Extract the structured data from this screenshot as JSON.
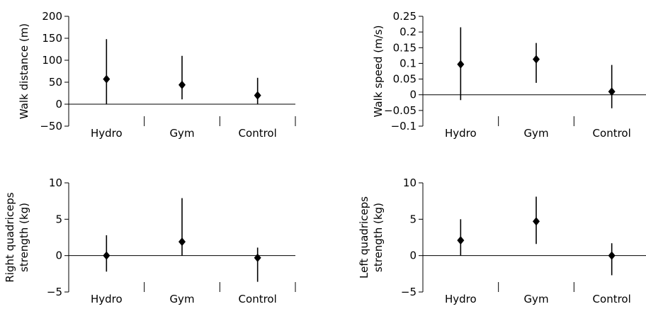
{
  "chart_data": [
    {
      "type": "scatter",
      "categories": [
        "Hydro",
        "Gym",
        "Control"
      ],
      "ylabel": [
        "Walk distance (m)"
      ],
      "ylim": [
        -50,
        200
      ],
      "yticks": [
        -50,
        0,
        50,
        100,
        150,
        200
      ],
      "ytick_labels": [
        "−50",
        "0",
        "50",
        "100",
        "150",
        "200"
      ],
      "series": [
        {
          "means": [
            57,
            44,
            20
          ],
          "lower": [
            0,
            11,
            0
          ],
          "upper": [
            148,
            110,
            60
          ]
        }
      ],
      "zero_line": true,
      "grid": false
    },
    {
      "type": "scatter",
      "categories": [
        "Hydro",
        "Gym",
        "Control"
      ],
      "ylabel": [
        "Walk speed (m/s)"
      ],
      "ylim": [
        -0.1,
        0.25
      ],
      "yticks": [
        -0.1,
        -0.05,
        0,
        0.05,
        0.1,
        0.15,
        0.2,
        0.25
      ],
      "ytick_labels": [
        "−0.1",
        "−0.05",
        "0",
        "0.05",
        "0.1",
        "0.15",
        "0.2",
        "0.25"
      ],
      "series": [
        {
          "means": [
            0.097,
            0.113,
            0.01
          ],
          "lower": [
            -0.017,
            0.038,
            -0.043
          ],
          "upper": [
            0.215,
            0.165,
            0.095
          ]
        }
      ],
      "zero_line": true,
      "grid": false
    },
    {
      "type": "scatter",
      "categories": [
        "Hydro",
        "Gym",
        "Control"
      ],
      "ylabel": [
        "Right quadriceps",
        "strength (kg)"
      ],
      "ylim": [
        -5,
        10
      ],
      "yticks": [
        -5,
        0,
        5,
        10
      ],
      "ytick_labels": [
        "−5",
        "0",
        "5",
        "10"
      ],
      "series": [
        {
          "means": [
            0,
            1.9,
            -0.3
          ],
          "lower": [
            -2.2,
            0,
            -3.6
          ],
          "upper": [
            2.8,
            7.9,
            1.1
          ]
        }
      ],
      "zero_line": true,
      "grid": false
    },
    {
      "type": "scatter",
      "categories": [
        "Hydro",
        "Gym",
        "Control"
      ],
      "ylabel": [
        "Left quadriceps",
        "strength (kg)"
      ],
      "ylim": [
        -5,
        10
      ],
      "yticks": [
        -5,
        0,
        5,
        10
      ],
      "ytick_labels": [
        "−5",
        "0",
        "5",
        "10"
      ],
      "series": [
        {
          "means": [
            2.1,
            4.7,
            0
          ],
          "lower": [
            0,
            1.6,
            -2.7
          ],
          "upper": [
            5,
            8.1,
            1.7
          ]
        }
      ],
      "zero_line": true,
      "grid": false
    }
  ]
}
